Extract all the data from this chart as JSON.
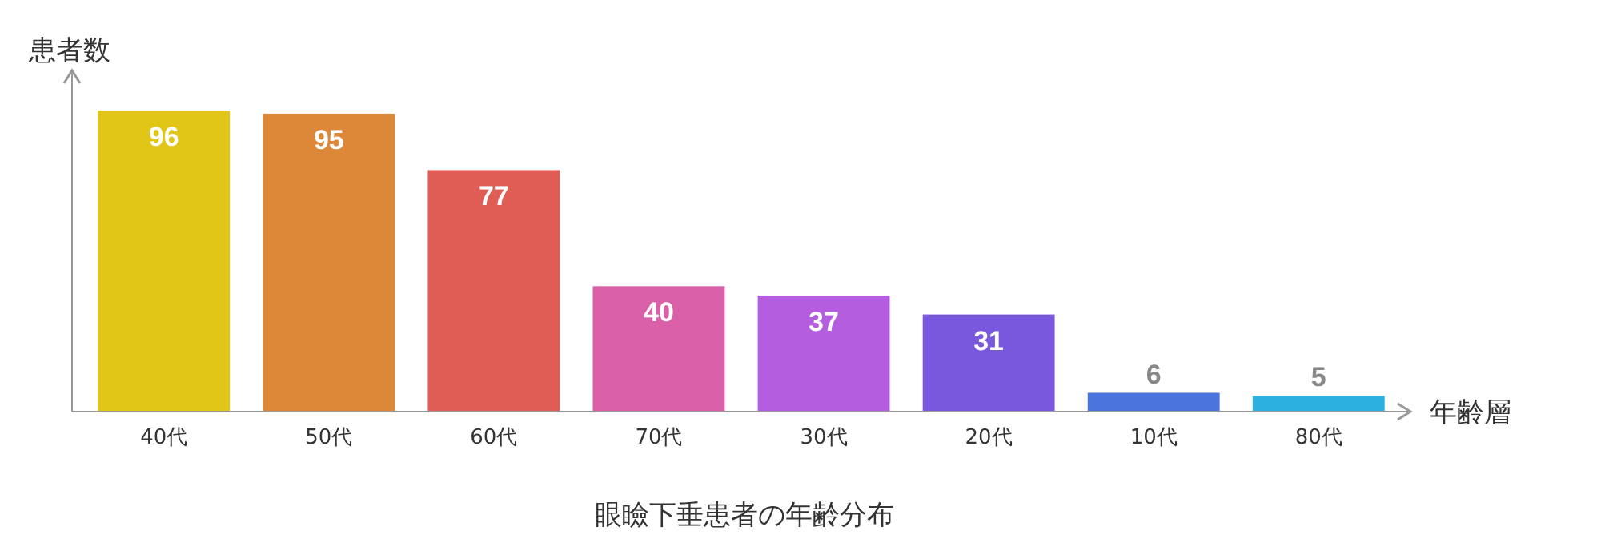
{
  "chart_data": {
    "type": "bar",
    "title": "眼瞼下垂患者の年齢分布",
    "xlabel": "年齢層",
    "ylabel": "患者数",
    "categories": [
      "40代",
      "50代",
      "60代",
      "70代",
      "30代",
      "20代",
      "10代",
      "80代"
    ],
    "values": [
      96,
      95,
      77,
      40,
      37,
      31,
      6,
      5
    ],
    "colors": [
      "#e2c617",
      "#dd8738",
      "#e05d56",
      "#d95fa9",
      "#b55ddf",
      "#7a58dd",
      "#4b73dc",
      "#2cb0e0"
    ],
    "data_labels": true
  }
}
